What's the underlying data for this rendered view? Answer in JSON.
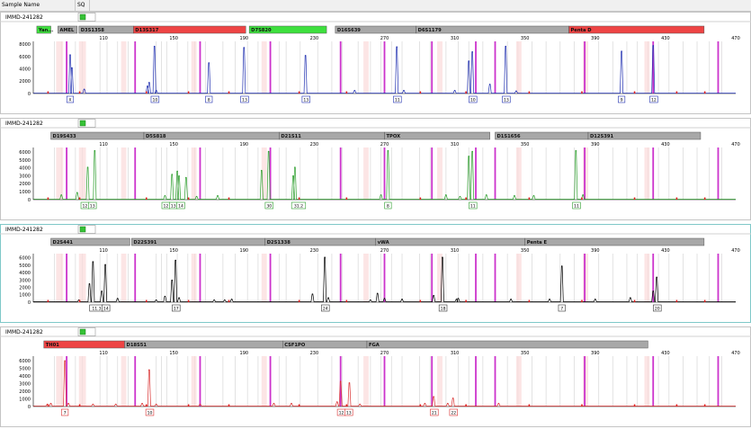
{
  "header": {
    "sample_name_label": "Sample Name",
    "sq_label": "SQ"
  },
  "chart_data": [
    {
      "type": "line",
      "sample": "IMMD-241282",
      "dye_color": "#1f2fb0",
      "xlim": [
        70,
        470
      ],
      "ylim": [
        0,
        8500
      ],
      "x_ticks": [
        110,
        150,
        190,
        230,
        270,
        310,
        350,
        390,
        430,
        470
      ],
      "y_ticks": [
        0,
        2000,
        4000,
        6000,
        8000
      ],
      "markers": [
        {
          "name": "Yan...",
          "start": 72,
          "end": 80,
          "color": "#3ee03e"
        },
        {
          "name": "AMEL",
          "start": 84,
          "end": 95,
          "color": "#a8a8a8"
        },
        {
          "name": "D3S1358",
          "start": 96,
          "end": 127,
          "color": "#a8a8a8"
        },
        {
          "name": "D13S317",
          "start": 127,
          "end": 191,
          "color": "#ee4444"
        },
        {
          "name": "D7S820",
          "start": 193,
          "end": 237,
          "color": "#3ee03e"
        },
        {
          "name": "D16S639",
          "start": 242,
          "end": 288,
          "color": "#a8a8a8"
        },
        {
          "name": "D6S1179",
          "start": 288,
          "end": 375,
          "color": "#a8a8a8"
        },
        {
          "name": "Penta D",
          "start": 375,
          "end": 452,
          "color": "#ee4444"
        }
      ],
      "peaks": [
        [
          91,
          6300
        ],
        [
          92,
          4200
        ],
        [
          99,
          700
        ],
        [
          135,
          1200
        ],
        [
          136,
          1800
        ],
        [
          139,
          7700
        ],
        [
          140,
          500
        ],
        [
          170,
          5000
        ],
        [
          190,
          7500
        ],
        [
          225,
          6200
        ],
        [
          253,
          500
        ],
        [
          277,
          7600
        ],
        [
          281,
          500
        ],
        [
          310,
          500
        ],
        [
          318,
          5300
        ],
        [
          320,
          6800
        ],
        [
          330,
          1500
        ],
        [
          339,
          7700
        ],
        [
          345,
          400
        ],
        [
          405,
          6900
        ],
        [
          423,
          7800
        ]
      ],
      "alleles": [
        {
          "x": 91,
          "labels": [
            "X"
          ]
        },
        {
          "x": 139,
          "labels": [
            "10"
          ]
        },
        {
          "x": 170,
          "labels": [
            "8"
          ]
        },
        {
          "x": 190,
          "labels": [
            "13"
          ]
        },
        {
          "x": 225,
          "labels": [
            "13"
          ]
        },
        {
          "x": 277,
          "labels": [
            "11"
          ]
        },
        {
          "x": 320,
          "labels": [
            "10"
          ]
        },
        {
          "x": 339,
          "labels": [
            "13"
          ]
        },
        {
          "x": 405,
          "labels": [
            "9"
          ]
        },
        {
          "x": 423,
          "labels": [
            "12"
          ]
        }
      ]
    },
    {
      "type": "line",
      "sample": "IMMD-241282",
      "dye_color": "#2c9e2c",
      "xlim": [
        70,
        470
      ],
      "ylim": [
        0,
        6600
      ],
      "x_ticks": [
        110,
        150,
        190,
        230,
        270,
        310,
        350,
        390,
        430,
        470
      ],
      "y_ticks": [
        0,
        1000,
        2000,
        3000,
        4000,
        5000,
        6000
      ],
      "markers": [
        {
          "name": "D19S433",
          "start": 80,
          "end": 133,
          "color": "#a8a8a8"
        },
        {
          "name": "D5S818",
          "start": 133,
          "end": 210,
          "color": "#a8a8a8"
        },
        {
          "name": "D21S11",
          "start": 210,
          "end": 270,
          "color": "#a8a8a8"
        },
        {
          "name": "TPOX",
          "start": 270,
          "end": 330,
          "color": "#a8a8a8"
        },
        {
          "name": "D1S1656",
          "start": 333,
          "end": 386,
          "color": "#a8a8a8"
        },
        {
          "name": "D12S391",
          "start": 386,
          "end": 450,
          "color": "#a8a8a8"
        }
      ],
      "peaks": [
        [
          86,
          600
        ],
        [
          95,
          900
        ],
        [
          101,
          4100
        ],
        [
          105,
          6200
        ],
        [
          145,
          500
        ],
        [
          149,
          3200
        ],
        [
          152,
          3600
        ],
        [
          153,
          3000
        ],
        [
          157,
          2800
        ],
        [
          163,
          400
        ],
        [
          175,
          500
        ],
        [
          200,
          3700
        ],
        [
          204,
          6100
        ],
        [
          218,
          3000
        ],
        [
          219,
          4100
        ],
        [
          268,
          600
        ],
        [
          272,
          6200
        ],
        [
          305,
          600
        ],
        [
          313,
          400
        ],
        [
          318,
          5500
        ],
        [
          320,
          6100
        ],
        [
          328,
          600
        ],
        [
          344,
          500
        ],
        [
          355,
          500
        ],
        [
          379,
          6200
        ],
        [
          383,
          600
        ]
      ],
      "alleles": [
        {
          "x": 101,
          "labels": [
            "12",
            "13"
          ]
        },
        {
          "x": 149,
          "labels": [
            "12",
            "13",
            "14"
          ]
        },
        {
          "x": 204,
          "labels": [
            "30"
          ]
        },
        {
          "x": 219,
          "labels": [
            "31.2"
          ]
        },
        {
          "x": 272,
          "labels": [
            "8"
          ]
        },
        {
          "x": 320,
          "labels": [
            "11"
          ]
        },
        {
          "x": 379,
          "labels": [
            "11"
          ]
        }
      ]
    },
    {
      "type": "line",
      "sample": "IMMD-241282",
      "dye_color": "#000000",
      "xlim": [
        70,
        470
      ],
      "ylim": [
        0,
        6600
      ],
      "x_ticks": [
        110,
        150,
        190,
        230,
        270,
        310,
        350,
        390,
        430,
        470
      ],
      "y_ticks": [
        0,
        1000,
        2000,
        3000,
        4000,
        5000,
        6000
      ],
      "markers": [
        {
          "name": "D2S441",
          "start": 80,
          "end": 125,
          "color": "#a8a8a8"
        },
        {
          "name": "D22S391",
          "start": 126,
          "end": 202,
          "color": "#a8a8a8"
        },
        {
          "name": "D2S1338",
          "start": 202,
          "end": 265,
          "color": "#a8a8a8"
        },
        {
          "name": "vWA",
          "start": 265,
          "end": 350,
          "color": "#a8a8a8"
        },
        {
          "name": "Penta E",
          "start": 350,
          "end": 452,
          "color": "#a8a8a8"
        }
      ],
      "peaks": [
        [
          96,
          300
        ],
        [
          102,
          2500
        ],
        [
          104,
          5500
        ],
        [
          109,
          1500
        ],
        [
          111,
          5100
        ],
        [
          118,
          500
        ],
        [
          140,
          300
        ],
        [
          145,
          800
        ],
        [
          149,
          3000
        ],
        [
          151,
          5700
        ],
        [
          153,
          600
        ],
        [
          173,
          300
        ],
        [
          179,
          300
        ],
        [
          183,
          400
        ],
        [
          229,
          1100
        ],
        [
          236,
          6100
        ],
        [
          238,
          600
        ],
        [
          262,
          300
        ],
        [
          266,
          1200
        ],
        [
          270,
          500
        ],
        [
          280,
          400
        ],
        [
          298,
          900
        ],
        [
          303,
          6100
        ],
        [
          311,
          400
        ],
        [
          312,
          500
        ],
        [
          342,
          400
        ],
        [
          364,
          400
        ],
        [
          371,
          4900
        ],
        [
          390,
          400
        ],
        [
          410,
          600
        ],
        [
          423,
          1500
        ],
        [
          425,
          3400
        ]
      ],
      "alleles": [
        {
          "x": 104,
          "labels": [
            "11.3"
          ]
        },
        {
          "x": 111,
          "labels": [
            "14"
          ]
        },
        {
          "x": 151,
          "labels": [
            "17"
          ]
        },
        {
          "x": 236,
          "labels": [
            "24"
          ]
        },
        {
          "x": 303,
          "labels": [
            "18"
          ]
        },
        {
          "x": 371,
          "labels": [
            "7"
          ]
        },
        {
          "x": 425,
          "labels": [
            "20"
          ]
        }
      ]
    },
    {
      "type": "line",
      "sample": "IMMD-241282",
      "dye_color": "#d93030",
      "xlim": [
        70,
        470
      ],
      "ylim": [
        0,
        6600
      ],
      "x_ticks": [
        110,
        150,
        190,
        230,
        270,
        310,
        350,
        390,
        430,
        470
      ],
      "y_ticks": [
        0,
        1000,
        2000,
        3000,
        4000,
        5000,
        6000
      ],
      "markers": [
        {
          "name": "TH01",
          "start": 76,
          "end": 122,
          "color": "#ee4444"
        },
        {
          "name": "D18S51",
          "start": 122,
          "end": 212,
          "color": "#a8a8a8"
        },
        {
          "name": "CSF1PO",
          "start": 212,
          "end": 260,
          "color": "#a8a8a8"
        },
        {
          "name": "FGA",
          "start": 260,
          "end": 420,
          "color": "#a8a8a8"
        }
      ],
      "peaks": [
        [
          78,
          300
        ],
        [
          80,
          400
        ],
        [
          88,
          6000
        ],
        [
          90,
          400
        ],
        [
          104,
          300
        ],
        [
          117,
          300
        ],
        [
          132,
          400
        ],
        [
          136,
          4800
        ],
        [
          140,
          300
        ],
        [
          165,
          300
        ],
        [
          207,
          400
        ],
        [
          217,
          400
        ],
        [
          243,
          600
        ],
        [
          245,
          3300
        ],
        [
          250,
          3100
        ],
        [
          256,
          300
        ],
        [
          293,
          400
        ],
        [
          298,
          1300
        ],
        [
          306,
          400
        ],
        [
          309,
          1100
        ],
        [
          335,
          400
        ]
      ],
      "alleles": [
        {
          "x": 88,
          "labels": [
            "7"
          ]
        },
        {
          "x": 136,
          "labels": [
            "10"
          ]
        },
        {
          "x": 247,
          "labels": [
            "12",
            "13"
          ]
        },
        {
          "x": 298,
          "labels": [
            "21"
          ]
        },
        {
          "x": 309,
          "labels": [
            "22"
          ]
        }
      ]
    }
  ]
}
